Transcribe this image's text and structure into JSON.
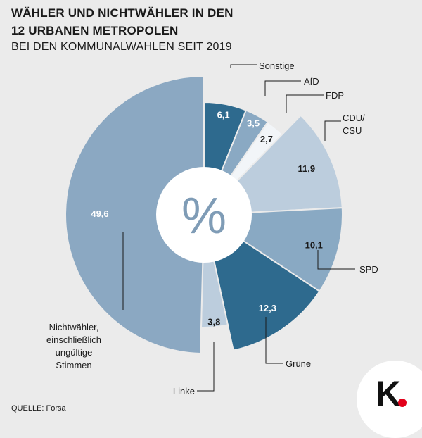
{
  "title": {
    "line1": "WÄHLER UND NICHTWÄHLER IN DEN",
    "line2": "12 URBANEN METROPOLEN",
    "line3": "BEI DEN KOMMUNALWAHLEN SEIT 2019"
  },
  "source": "QUELLE: Forsa",
  "logo": {
    "letter": "K",
    "dot_color": "#e2001a"
  },
  "chart_data": {
    "type": "pie",
    "variant": "donut",
    "title": "WÄHLER UND NICHTWÄHLER IN DEN 12 URBANEN METROPOLEN BEI DEN KOMMUNALWAHLEN SEIT 2019",
    "center_label": "%",
    "unit": "%",
    "slices": [
      {
        "name": "Sonstige",
        "label_lines": [
          "Sonstige"
        ],
        "value": 6.1,
        "value_label": "6,1",
        "color": "#2e6a8e",
        "value_color": "#ffffff"
      },
      {
        "name": "AfD",
        "label_lines": [
          "AfD"
        ],
        "value": 3.5,
        "value_label": "3,5",
        "color": "#8aa9c3",
        "value_color": "#ffffff"
      },
      {
        "name": "FDP",
        "label_lines": [
          "FDP"
        ],
        "value": 2.7,
        "value_label": "2,7",
        "color": "#f2f5f8",
        "value_color": "#1a1a1a"
      },
      {
        "name": "CDU/CSU",
        "label_lines": [
          "CDU/",
          "CSU"
        ],
        "value": 11.9,
        "value_label": "11,9",
        "color": "#bccddd",
        "value_color": "#1a1a1a"
      },
      {
        "name": "SPD",
        "label_lines": [
          "SPD"
        ],
        "value": 10.1,
        "value_label": "10,1",
        "color": "#89a9c3",
        "value_color": "#1a1a1a"
      },
      {
        "name": "Grüne",
        "label_lines": [
          "Grüne"
        ],
        "value": 12.3,
        "value_label": "12,3",
        "color": "#2e6a8e",
        "value_color": "#ffffff"
      },
      {
        "name": "Linke",
        "label_lines": [
          "Linke"
        ],
        "value": 3.8,
        "value_label": "3,8",
        "color": "#bccddd",
        "value_color": "#1a1a1a"
      },
      {
        "name": "Nichtwähler, einschließlich ungültige Stimmen",
        "label_lines": [
          "Nichtwähler,",
          "einschließlich",
          "ungültige",
          "Stimmen"
        ],
        "value": 49.6,
        "value_label": "49,6",
        "color": "#8ba8c2",
        "value_color": "#ffffff"
      }
    ]
  }
}
